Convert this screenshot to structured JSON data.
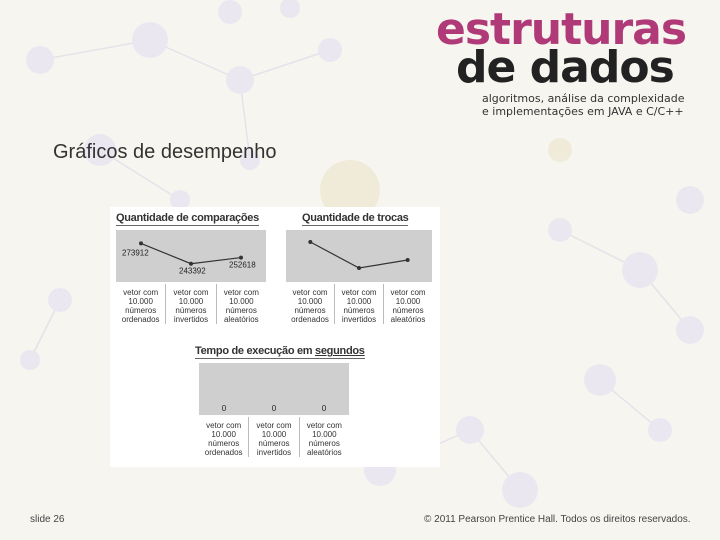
{
  "brand": {
    "line1": "estruturas",
    "line2": "de dados",
    "sub1": "algoritmos, análise da complexidade",
    "sub2": "e implementações em JAVA e C/C++"
  },
  "slide": {
    "title": "Gráficos de desempenho",
    "number_label": "slide 26",
    "copyright": "© 2011 Pearson Prentice Hall. Todos os direitos reservados."
  },
  "colors": {
    "brand_pink": "#b03a78",
    "plot_bg": "#cfcfcf",
    "line": "#333333"
  },
  "chart_data": [
    {
      "type": "line",
      "title": "Quantidade de comparações",
      "categories": [
        [
          "vetor com",
          "10.000",
          "números",
          "ordenados"
        ],
        [
          "vetor com",
          "10.000",
          "números",
          "invertidos"
        ],
        [
          "vetor com",
          "10.000",
          "números",
          "aleatórios"
        ]
      ],
      "values": [
        273912,
        243392,
        252618
      ],
      "data_labels": [
        "273912",
        "243392",
        "252618"
      ],
      "ylim": [
        225000,
        285000
      ],
      "grid": false
    },
    {
      "type": "line",
      "title": "Quantidade de trocas",
      "categories": [
        [
          "vetor com",
          "10.000",
          "números",
          "ordenados"
        ],
        [
          "vetor com",
          "10.000",
          "números",
          "invertidos"
        ],
        [
          "vetor com",
          "10.000",
          "números",
          "aleatórios"
        ]
      ],
      "values": [
        0.85,
        0.2,
        0.4
      ],
      "data_labels": [],
      "ylim": [
        0,
        1
      ],
      "grid": false
    },
    {
      "type": "bar",
      "title": "Tempo de execução em segundos",
      "title_parts": [
        "Tempo de execução em ",
        "segundos"
      ],
      "categories": [
        [
          "vetor com",
          "10.000",
          "números",
          "ordenados"
        ],
        [
          "vetor com",
          "10.000",
          "números",
          "invertidos"
        ],
        [
          "vetor com",
          "10.000",
          "números",
          "aleatórios"
        ]
      ],
      "values": [
        0,
        0,
        0
      ],
      "data_labels": [
        "0",
        "0",
        "0"
      ],
      "ylim": [
        0,
        1
      ],
      "grid": false
    }
  ]
}
